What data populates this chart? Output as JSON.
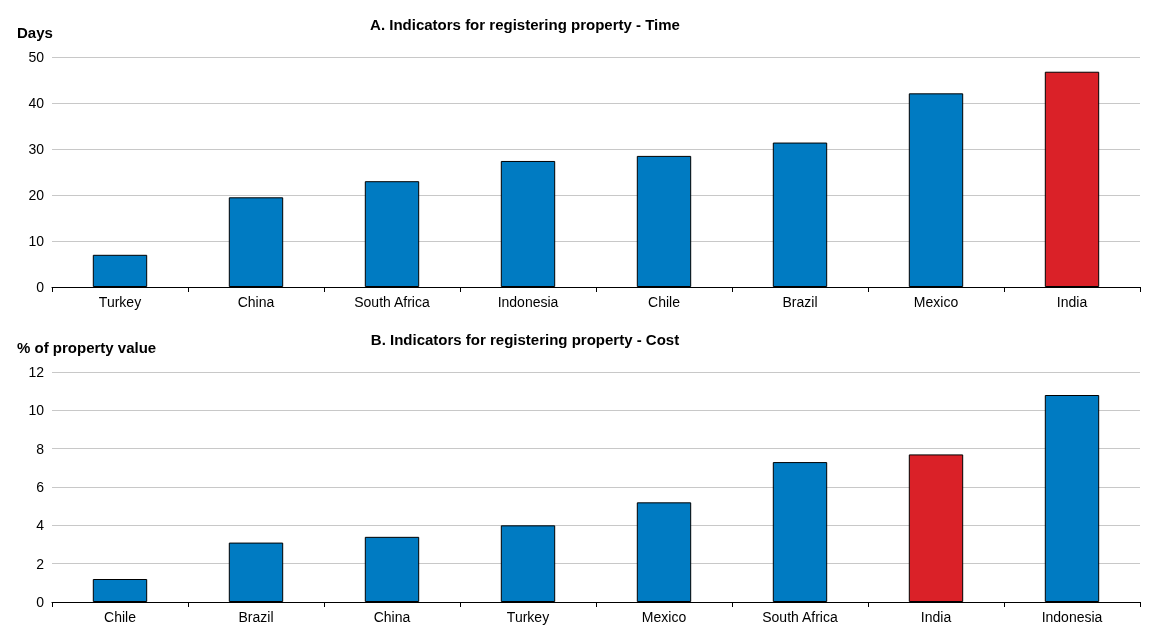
{
  "chart_data": [
    {
      "type": "bar",
      "title": "A. Indicators for registering property - Time",
      "ylabel": "Days",
      "categories": [
        "Turkey",
        "China",
        "South Africa",
        "Indonesia",
        "Chile",
        "Brazil",
        "Mexico",
        "India"
      ],
      "values": [
        7,
        19.5,
        23,
        27.4,
        28.5,
        31.4,
        42.1,
        46.8
      ],
      "colors": [
        "#007bc2",
        "#007bc2",
        "#007bc2",
        "#007bc2",
        "#007bc2",
        "#007bc2",
        "#007bc2",
        "#da2128"
      ],
      "ylim": [
        0,
        50
      ],
      "yticks": [
        0,
        10,
        20,
        30,
        40,
        50
      ],
      "grid": "y"
    },
    {
      "type": "bar",
      "title": "B. Indicators for registering property - Cost",
      "ylabel": "% of property value",
      "categories": [
        "Chile",
        "Brazil",
        "China",
        "Turkey",
        "Mexico",
        "South Africa",
        "India",
        "Indonesia"
      ],
      "values": [
        1.2,
        3.1,
        3.4,
        4.0,
        5.2,
        7.3,
        7.7,
        10.8
      ],
      "colors": [
        "#007bc2",
        "#007bc2",
        "#007bc2",
        "#007bc2",
        "#007bc2",
        "#007bc2",
        "#da2128",
        "#007bc2"
      ],
      "ylim": [
        0,
        12
      ],
      "yticks": [
        0,
        2,
        4,
        6,
        8,
        10,
        12
      ],
      "grid": "y"
    }
  ]
}
